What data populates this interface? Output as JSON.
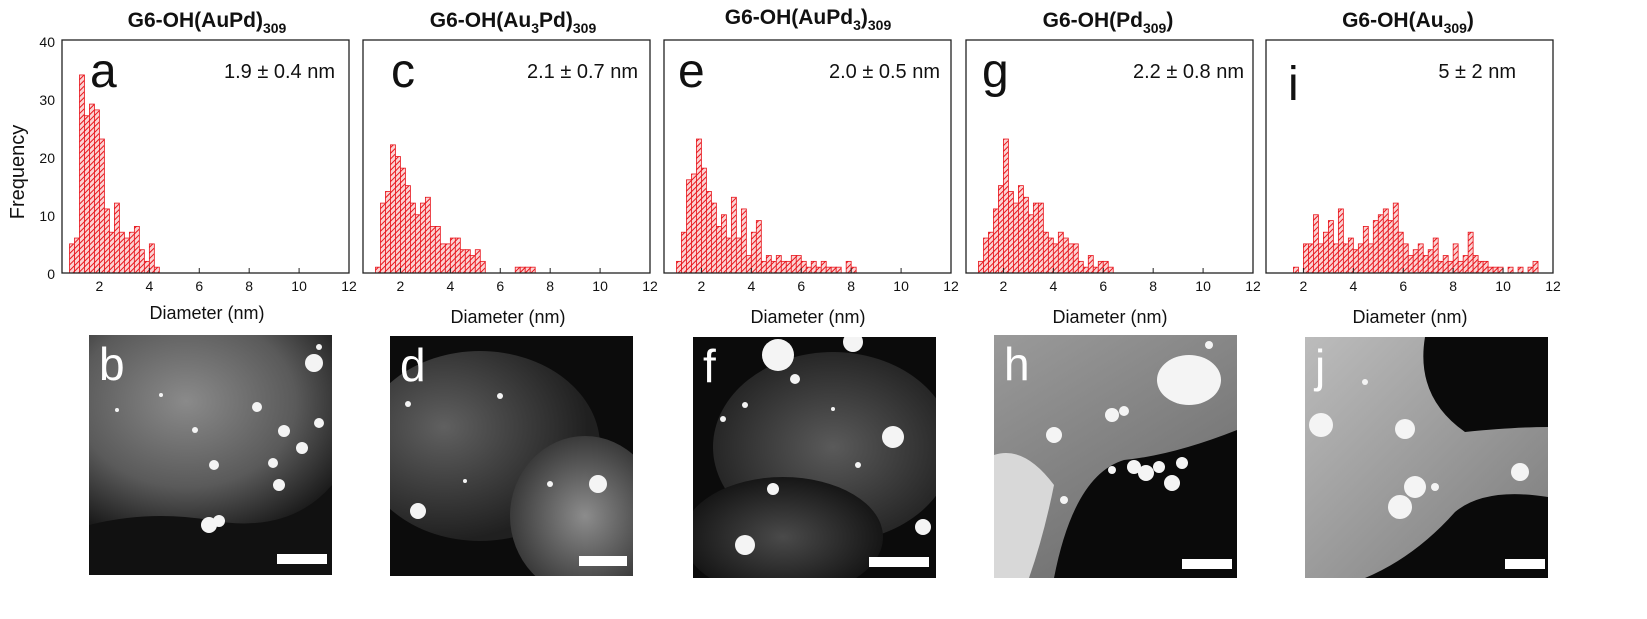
{
  "figure": {
    "y_axis_label": "Frequency",
    "x_axis_label": "Diameter (nm)",
    "y_ticks": [
      "0",
      "10",
      "20",
      "30",
      "40"
    ],
    "x_ticks": [
      "2",
      "4",
      "6",
      "8",
      "10",
      "12"
    ],
    "bar_color": "#e8141b",
    "bar_hatch": "diagonal"
  },
  "chart_data": [
    {
      "type": "bar",
      "panel": "a",
      "title": "G6-OH(AuPd)",
      "title_subscript": "309",
      "annotation": "1.9 ± 0.4 nm",
      "xlabel": "Diameter (nm)",
      "ylabel": "Frequency",
      "xlim": [
        0.5,
        12
      ],
      "ylim": [
        0,
        40
      ],
      "bin_width": 0.2,
      "x": [
        0.9,
        1.1,
        1.3,
        1.5,
        1.7,
        1.9,
        2.1,
        2.3,
        2.5,
        2.7,
        2.9,
        3.1,
        3.3,
        3.5,
        3.7,
        3.9,
        4.1,
        4.3
      ],
      "values": [
        5,
        6,
        34,
        27,
        29,
        28,
        23,
        11,
        7,
        12,
        7,
        6,
        7,
        8,
        4,
        2,
        5,
        1
      ]
    },
    {
      "type": "bar",
      "panel": "c",
      "title": "G6-OH(Au",
      "title_subscript_1": "3",
      "title_middle": "Pd)",
      "title_subscript": "309",
      "annotation": "2.1 ± 0.7 nm",
      "xlabel": "Diameter (nm)",
      "xlim": [
        0.5,
        12
      ],
      "ylim": [
        0,
        40
      ],
      "bin_width": 0.2,
      "x": [
        1.1,
        1.3,
        1.5,
        1.7,
        1.9,
        2.1,
        2.3,
        2.5,
        2.7,
        2.9,
        3.1,
        3.3,
        3.5,
        3.7,
        3.9,
        4.1,
        4.3,
        4.5,
        4.7,
        4.9,
        5.1,
        5.3,
        6.7,
        6.9,
        7.1,
        7.3
      ],
      "values": [
        1,
        12,
        14,
        22,
        20,
        18,
        15,
        12,
        10,
        12,
        13,
        8,
        8,
        5,
        5,
        6,
        6,
        4,
        4,
        3,
        4,
        2,
        1,
        1,
        1,
        1
      ]
    },
    {
      "type": "bar",
      "panel": "e",
      "title": "G6-OH(AuPd",
      "title_subscript_1": "3",
      "title_middle": ")",
      "title_subscript": "309",
      "annotation": "2.0 ± 0.5 nm",
      "xlabel": "Diameter (nm)",
      "xlim": [
        0.5,
        12
      ],
      "ylim": [
        0,
        40
      ],
      "bin_width": 0.2,
      "x": [
        1.1,
        1.3,
        1.5,
        1.7,
        1.9,
        2.1,
        2.3,
        2.5,
        2.7,
        2.9,
        3.1,
        3.3,
        3.5,
        3.7,
        3.9,
        4.1,
        4.3,
        4.5,
        4.7,
        4.9,
        5.1,
        5.3,
        5.5,
        5.7,
        5.9,
        6.1,
        6.3,
        6.5,
        6.7,
        6.9,
        7.1,
        7.3,
        7.5,
        7.9,
        8.1
      ],
      "values": [
        2,
        7,
        16,
        17,
        23,
        18,
        14,
        12,
        8,
        10,
        6,
        13,
        6,
        11,
        3,
        7,
        9,
        2,
        3,
        2,
        3,
        2,
        2,
        3,
        3,
        2,
        1,
        2,
        1,
        2,
        1,
        1,
        1,
        2,
        1
      ]
    },
    {
      "type": "bar",
      "panel": "g",
      "title": "G6-OH(Pd",
      "title_subscript": "309",
      "title_end": ")",
      "annotation": "2.2 ± 0.8 nm",
      "xlabel": "Diameter (nm)",
      "xlim": [
        0.5,
        12
      ],
      "ylim": [
        0,
        40
      ],
      "bin_width": 0.2,
      "x": [
        1.1,
        1.3,
        1.5,
        1.7,
        1.9,
        2.1,
        2.3,
        2.5,
        2.7,
        2.9,
        3.1,
        3.3,
        3.5,
        3.7,
        3.9,
        4.1,
        4.3,
        4.5,
        4.7,
        4.9,
        5.1,
        5.3,
        5.5,
        5.7,
        5.9,
        6.1,
        6.3
      ],
      "values": [
        2,
        6,
        7,
        11,
        15,
        23,
        14,
        12,
        15,
        13,
        10,
        12,
        12,
        7,
        6,
        5,
        7,
        6,
        5,
        5,
        2,
        1,
        3,
        1,
        2,
        2,
        1
      ]
    },
    {
      "type": "bar",
      "panel": "i",
      "title": "G6-OH(Au",
      "title_subscript": "309",
      "title_end": ")",
      "annotation": "5 ± 2 nm",
      "xlabel": "Diameter (nm)",
      "xlim": [
        0.5,
        12
      ],
      "ylim": [
        0,
        40
      ],
      "bin_width": 0.2,
      "x": [
        1.7,
        2.1,
        2.3,
        2.5,
        2.7,
        2.9,
        3.1,
        3.3,
        3.5,
        3.7,
        3.9,
        4.1,
        4.3,
        4.5,
        4.7,
        4.9,
        5.1,
        5.3,
        5.5,
        5.7,
        5.9,
        6.1,
        6.3,
        6.5,
        6.7,
        6.9,
        7.1,
        7.3,
        7.5,
        7.7,
        7.9,
        8.1,
        8.3,
        8.5,
        8.7,
        8.9,
        9.1,
        9.3,
        9.5,
        9.7,
        9.9,
        10.3,
        10.7,
        11.1,
        11.3
      ],
      "values": [
        1,
        5,
        5,
        10,
        5,
        7,
        9,
        5,
        11,
        5,
        6,
        4,
        5,
        8,
        5,
        9,
        10,
        11,
        9,
        12,
        7,
        5,
        3,
        4,
        5,
        3,
        4,
        6,
        2,
        3,
        2,
        5,
        2,
        3,
        7,
        3,
        2,
        2,
        1,
        1,
        1,
        1,
        1,
        1,
        2
      ]
    }
  ],
  "images": [
    {
      "letter": "b"
    },
    {
      "letter": "d"
    },
    {
      "letter": "f"
    },
    {
      "letter": "h"
    },
    {
      "letter": "j"
    }
  ]
}
